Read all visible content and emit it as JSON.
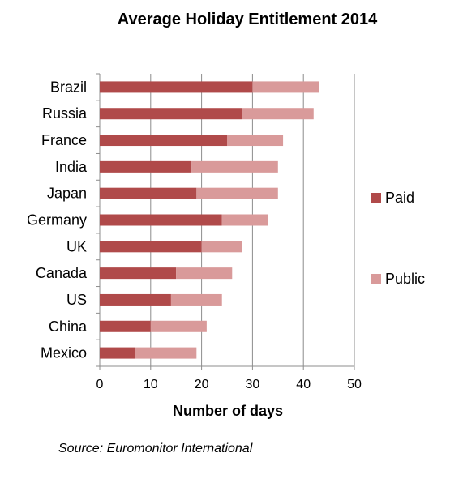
{
  "chart_data": {
    "type": "bar",
    "orientation": "horizontal",
    "stacked": true,
    "title": "Average Holiday Entitlement 2014",
    "xlabel": "Number of days",
    "ylabel": "",
    "xlim": [
      0,
      50
    ],
    "x_ticks": [
      0,
      10,
      20,
      30,
      40,
      50
    ],
    "grid": "vertical gridlines",
    "legend_position": "right",
    "categories": [
      "Brazil",
      "Russia",
      "France",
      "India",
      "Japan",
      "Germany",
      "UK",
      "Canada",
      "US",
      "China",
      "Mexico"
    ],
    "series": [
      {
        "name": "Paid",
        "color": "#b04a4a",
        "values": [
          30,
          28,
          25,
          18,
          19,
          24,
          20,
          15,
          14,
          10,
          7
        ]
      },
      {
        "name": "Public",
        "color": "#d99a9a",
        "values": [
          13,
          14,
          11,
          17,
          16,
          9,
          8,
          11,
          10,
          11,
          12
        ]
      }
    ]
  },
  "source_text": "Source: Euromonitor International"
}
